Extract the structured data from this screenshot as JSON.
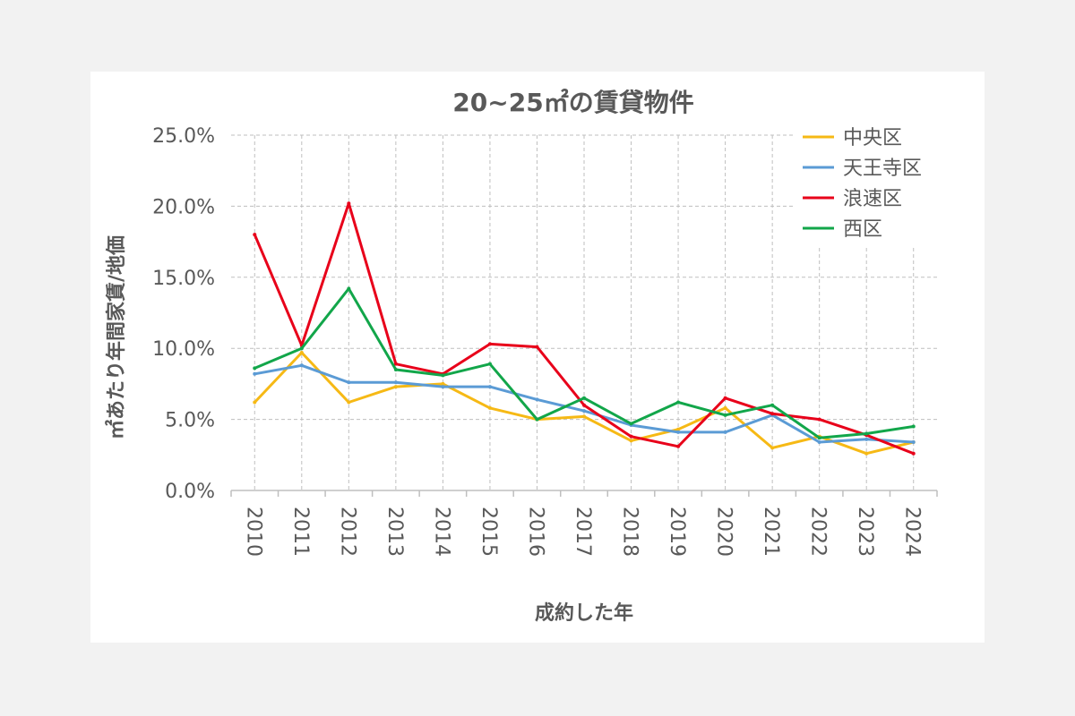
{
  "chart_data": {
    "type": "line",
    "title": "20~25㎡の賃貸物件",
    "xlabel": "成約した年",
    "ylabel": "㎡あたり年間家賃/地価",
    "categories": [
      "2010",
      "2011",
      "2012",
      "2013",
      "2014",
      "2015",
      "2016",
      "2017",
      "2018",
      "2019",
      "2020",
      "2021",
      "2022",
      "2023",
      "2024"
    ],
    "y_ticks": [
      "0.0%",
      "5.0%",
      "10.0%",
      "15.0%",
      "20.0%",
      "25.0%"
    ],
    "ylim": [
      0,
      25
    ],
    "grid": true,
    "legend_position": "top-right",
    "series": [
      {
        "name": "中央区",
        "color": "#f6b915",
        "values": [
          6.2,
          9.7,
          6.2,
          7.3,
          7.5,
          5.8,
          5.0,
          5.2,
          3.5,
          4.3,
          5.8,
          3.0,
          3.8,
          2.6,
          3.4
        ]
      },
      {
        "name": "天王寺区",
        "color": "#5b9bd5",
        "values": [
          8.2,
          8.8,
          7.6,
          7.6,
          7.3,
          7.3,
          6.4,
          5.6,
          4.6,
          4.1,
          4.1,
          5.3,
          3.4,
          3.6,
          3.4
        ]
      },
      {
        "name": "浪速区",
        "color": "#e8001a",
        "values": [
          18.0,
          10.2,
          20.2,
          8.9,
          8.2,
          10.3,
          10.1,
          6.0,
          3.8,
          3.1,
          6.5,
          5.4,
          5.0,
          3.9,
          2.6
        ]
      },
      {
        "name": "西区",
        "color": "#12a64a",
        "values": [
          8.6,
          10.0,
          14.2,
          8.5,
          8.1,
          8.9,
          5.0,
          6.5,
          4.7,
          6.2,
          5.3,
          6.0,
          3.7,
          4.0,
          4.5
        ]
      }
    ]
  }
}
